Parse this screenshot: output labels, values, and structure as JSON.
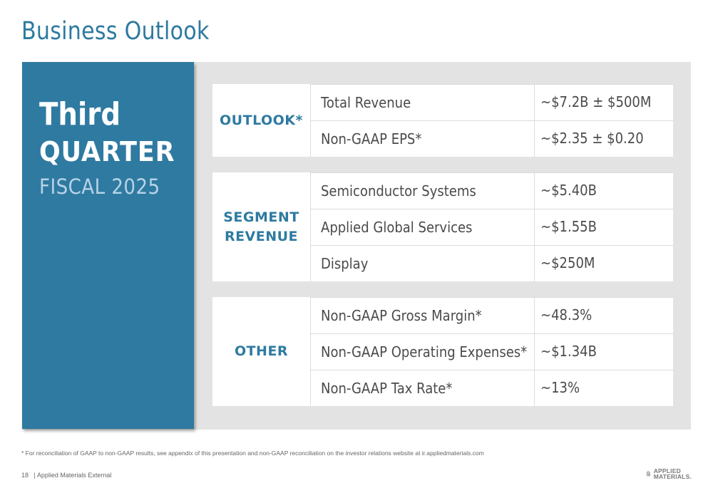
{
  "title": "Business Outlook",
  "quarter_panel": {
    "line1": "Third",
    "line2": "QUARTER",
    "line3": "FISCAL 2025"
  },
  "sections": [
    {
      "category": "OUTLOOK*",
      "rows": [
        {
          "label": "Total Revenue",
          "value": "~$7.2B ± $500M"
        },
        {
          "label": "Non-GAAP EPS*",
          "value": "~$2.35 ± $0.20"
        }
      ]
    },
    {
      "category_line1": "SEGMENT",
      "category_line2": "REVENUE",
      "rows": [
        {
          "label": "Semiconductor Systems",
          "value": "~$5.40B"
        },
        {
          "label": "Applied Global Services",
          "value": "~$1.55B"
        },
        {
          "label": "Display",
          "value": "~$250M"
        }
      ]
    },
    {
      "category": "OTHER",
      "rows": [
        {
          "label": "Non-GAAP Gross Margin*",
          "value": "~48.3%"
        },
        {
          "label": "Non-GAAP Operating Expenses*",
          "value": "~$1.34B"
        },
        {
          "label": "Non-GAAP Tax Rate*",
          "value": "~13%"
        }
      ]
    }
  ],
  "footnote": "* For reconciliation of GAAP to non-GAAP results, see appendix of this presentation and non-GAAP reconciliation on the investor relations website at ir.appliedmaterials.com",
  "footer": {
    "page_number": "18",
    "classification": "| Applied Materials External"
  },
  "logo": {
    "line1": "APPLIED",
    "line2": "MATERIALS."
  },
  "colors": {
    "accent": "#2f7aa1",
    "panel_gray": "#e3e3e3"
  }
}
